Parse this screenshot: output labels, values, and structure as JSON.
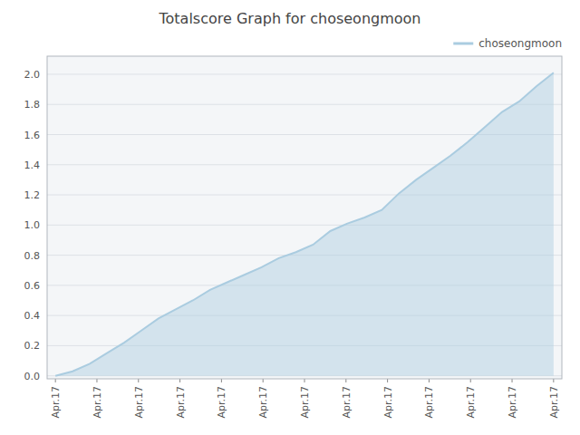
{
  "chart_data": {
    "type": "area",
    "title": "Totalscore Graph for choseongmoon",
    "x": [
      0,
      0.41379310344827586,
      0.8275862068965517,
      1.2413793103448276,
      1.6551724137931034,
      2.0689655172413794,
      2.4827586206896552,
      2.896551724137931,
      3.310344827586207,
      3.7241379310344827,
      4.137931034482759,
      4.551724137931035,
      4.9655172413793105,
      5.379310344827586,
      5.793103448275862,
      6.206896551724138,
      6.620689655172414,
      7.0344827586206895,
      7.448275862068966,
      7.862068965517241,
      8.275862068965518,
      8.689655172413794,
      9.10344827586207,
      9.517241379310345,
      9.931034482758621,
      10.344827586206897,
      10.758620689655173,
      11.172413793103448,
      11.586206896551724,
      12
    ],
    "series": [
      {
        "name": "choseongmoon",
        "color": "#aacce0",
        "values": [
          0.0,
          0.03,
          0.08,
          0.15,
          0.22,
          0.3,
          0.38,
          0.44,
          0.5,
          0.57,
          0.62,
          0.67,
          0.72,
          0.78,
          0.82,
          0.87,
          0.96,
          1.01,
          1.05,
          1.1,
          1.21,
          1.3,
          1.38,
          1.46,
          1.55,
          1.65,
          1.75,
          1.82,
          1.92,
          2.01
        ]
      }
    ],
    "xlim": [
      -0.2,
      12.2
    ],
    "xticks": [
      {
        "value": 0,
        "label": "Apr.17"
      },
      {
        "value": 1,
        "label": "Apr.17"
      },
      {
        "value": 2,
        "label": "Apr.17"
      },
      {
        "value": 3,
        "label": "Apr.17"
      },
      {
        "value": 4,
        "label": "Apr.17"
      },
      {
        "value": 5,
        "label": "Apr.17"
      },
      {
        "value": 6,
        "label": "Apr.17"
      },
      {
        "value": 7,
        "label": "Apr.17"
      },
      {
        "value": 8,
        "label": "Apr.17"
      },
      {
        "value": 9,
        "label": "Apr.17"
      },
      {
        "value": 10,
        "label": "Apr.17"
      },
      {
        "value": 11,
        "label": "Apr.17"
      },
      {
        "value": 12,
        "label": "Apr.17"
      }
    ],
    "ylim": [
      -0.02,
      2.12
    ],
    "yticks": [
      {
        "value": 0,
        "label": "0.0"
      },
      0.2,
      0.4,
      0.6,
      0.8,
      {
        "value": 1,
        "label": "1.0"
      },
      1.2,
      1.4,
      1.6,
      1.8,
      {
        "value": 2,
        "label": "2.0"
      }
    ],
    "grid": true,
    "legend": "upper right"
  }
}
